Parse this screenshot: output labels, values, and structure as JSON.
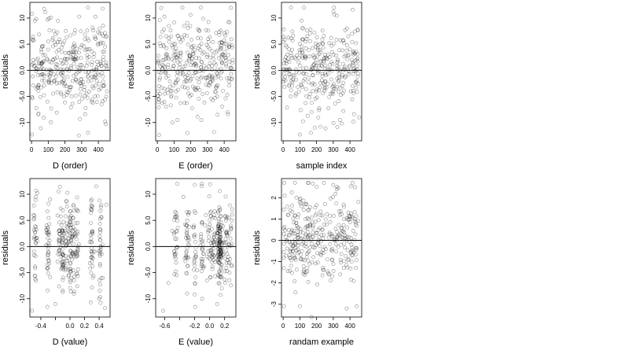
{
  "chart_data": [
    {
      "type": "scatter",
      "xlabel": "D (order)",
      "ylabel": "residuals",
      "xlim": [
        -10,
        470
      ],
      "ylim": [
        -13.5,
        13
      ],
      "xticks": [
        0,
        100,
        200,
        300,
        400
      ],
      "yticks": [
        -10,
        -5,
        0,
        5,
        10
      ],
      "hline": 0,
      "points": [
        [
          3,
          -12.3
        ],
        [
          20,
          9.5
        ],
        [
          55,
          -11.1
        ],
        [
          60,
          0.5
        ],
        [
          62,
          -0.8
        ],
        [
          92,
          2.2
        ],
        [
          95,
          -6
        ],
        [
          100,
          5.5
        ],
        [
          120,
          1.5
        ],
        [
          130,
          2
        ],
        [
          150,
          3.5
        ],
        [
          180,
          -1
        ],
        [
          200,
          2.2
        ],
        [
          240,
          -5
        ],
        [
          250,
          3
        ],
        [
          300,
          1
        ],
        [
          320,
          -8.4
        ],
        [
          330,
          4
        ],
        [
          360,
          -6
        ],
        [
          390,
          -2
        ],
        [
          400,
          1
        ],
        [
          420,
          7
        ],
        [
          425,
          11.8
        ],
        [
          430,
          -3
        ],
        [
          440,
          -9.8
        ],
        [
          445,
          -10.3
        ],
        [
          450,
          6.5
        ],
        [
          452,
          -4
        ]
      ],
      "generated": {
        "n": 320,
        "seed": 11,
        "xmin": 0,
        "xmax": 450,
        "mode": "uniform",
        "sd": 4.2,
        "mean": 0.5,
        "ymin": -12.5,
        "ymax": 12
      }
    },
    {
      "type": "scatter",
      "xlabel": "E (order)",
      "ylabel": "residuals",
      "xlim": [
        -10,
        470
      ],
      "ylim": [
        -13.5,
        13
      ],
      "xticks": [
        0,
        100,
        200,
        300,
        400
      ],
      "yticks": [
        -10,
        -5,
        0,
        5,
        10
      ],
      "hline": 0,
      "points": [
        [
          10,
          -12.4
        ],
        [
          15,
          9.6
        ],
        [
          20,
          -0.5
        ],
        [
          40,
          2
        ],
        [
          60,
          3
        ],
        [
          90,
          -10
        ],
        [
          120,
          -9.5
        ],
        [
          130,
          6
        ],
        [
          150,
          12
        ],
        [
          160,
          8.5
        ],
        [
          170,
          -2
        ],
        [
          180,
          -12
        ],
        [
          200,
          1
        ],
        [
          230,
          -0.3
        ],
        [
          250,
          2.3
        ],
        [
          260,
          6.1
        ],
        [
          290,
          -1.5
        ],
        [
          300,
          3
        ],
        [
          330,
          -2
        ],
        [
          360,
          -8.5
        ],
        [
          390,
          3
        ],
        [
          420,
          -8
        ],
        [
          430,
          -1.5
        ],
        [
          440,
          0.5
        ],
        [
          450,
          2
        ]
      ],
      "generated": {
        "n": 320,
        "seed": 23,
        "xmin": 0,
        "xmax": 450,
        "mode": "uniform",
        "sd": 4.2,
        "mean": 0.5,
        "ymin": -12.5,
        "ymax": 12
      }
    },
    {
      "type": "scatter",
      "xlabel": "sample index",
      "ylabel": "residuals",
      "xlim": [
        -10,
        470
      ],
      "ylim": [
        -13.5,
        13
      ],
      "xticks": [
        0,
        100,
        200,
        300,
        400
      ],
      "yticks": [
        -10,
        -5,
        0,
        5,
        10
      ],
      "hline": 0,
      "points": [
        [
          10,
          2
        ],
        [
          15,
          2.5
        ],
        [
          20,
          1.8
        ],
        [
          25,
          3
        ],
        [
          30,
          2.2
        ],
        [
          50,
          -2
        ],
        [
          60,
          -1
        ],
        [
          100,
          -12.3
        ],
        [
          110,
          9.5
        ],
        [
          120,
          8
        ],
        [
          125,
          12
        ],
        [
          140,
          6
        ],
        [
          170,
          -8
        ],
        [
          190,
          -11
        ],
        [
          200,
          2
        ],
        [
          250,
          3
        ],
        [
          280,
          1
        ],
        [
          300,
          -3
        ],
        [
          340,
          -9.5
        ],
        [
          350,
          -10.2
        ],
        [
          390,
          6.5
        ],
        [
          400,
          4
        ],
        [
          420,
          0.3
        ],
        [
          440,
          -2
        ],
        [
          455,
          -9
        ]
      ],
      "generated": {
        "n": 320,
        "seed": 37,
        "xmin": 0,
        "xmax": 450,
        "mode": "uniform",
        "sd": 4.2,
        "mean": 0.5,
        "ymin": -12.5,
        "ymax": 12
      }
    },
    {
      "type": "scatter",
      "xlabel": "D (value)",
      "ylabel": "residuals",
      "xlim": [
        -0.55,
        0.55
      ],
      "ylim": [
        -13.5,
        13
      ],
      "xticks": [
        -0.4,
        -0.2,
        0.0,
        0.2,
        0.4
      ],
      "xticklabels": [
        "-0.4",
        "",
        "0.0",
        "0.2",
        "0.4"
      ],
      "yticks": [
        -10,
        -5,
        0,
        5,
        10
      ],
      "hline": 0,
      "points": [
        [
          -0.52,
          -12.3
        ],
        [
          -0.5,
          6
        ],
        [
          -0.47,
          9.5
        ],
        [
          -0.45,
          1
        ],
        [
          -0.2,
          -11
        ],
        [
          -0.1,
          3
        ],
        [
          0,
          2.5
        ],
        [
          0.02,
          -6
        ],
        [
          0.1,
          -1
        ],
        [
          0.3,
          7
        ],
        [
          0.36,
          11.5
        ],
        [
          0.4,
          -10
        ],
        [
          0.42,
          -10.8
        ],
        [
          0.45,
          -6
        ],
        [
          0.48,
          -11.8
        ],
        [
          0.5,
          8
        ]
      ],
      "generated": {
        "n": 320,
        "seed": 53,
        "xmin": -0.52,
        "xmax": 0.52,
        "mode": "clusters",
        "centers": [
          -0.48,
          -0.3,
          -0.15,
          -0.1,
          -0.05,
          0.0,
          0.05,
          0.1,
          0.3,
          0.42
        ],
        "jitter": 0.012,
        "sd": 4.2,
        "mean": 0.5,
        "ymin": -12.5,
        "ymax": 12
      }
    },
    {
      "type": "scatter",
      "xlabel": "E (value)",
      "ylabel": "residuals",
      "xlim": [
        -0.72,
        0.35
      ],
      "ylim": [
        -13.5,
        13
      ],
      "xticks": [
        -0.6,
        -0.4,
        -0.2,
        0.0,
        0.2
      ],
      "xticklabels": [
        "-0.6",
        "",
        "-0.2",
        "0.0",
        "0.2"
      ],
      "yticks": [
        -10,
        -5,
        0,
        5,
        10
      ],
      "hline": 0,
      "points": [
        [
          -0.62,
          -12.3
        ],
        [
          -0.55,
          -7
        ],
        [
          -0.5,
          3
        ],
        [
          -0.35,
          9.5
        ],
        [
          -0.3,
          -9
        ],
        [
          -0.2,
          11.8
        ],
        [
          -0.1,
          -10
        ],
        [
          -0.05,
          6
        ],
        [
          0.1,
          -11
        ],
        [
          0.12,
          3
        ],
        [
          0.13,
          1
        ],
        [
          0.15,
          -4
        ],
        [
          0.25,
          -2
        ],
        [
          0.28,
          4
        ]
      ],
      "generated": {
        "n": 340,
        "seed": 71,
        "xmin": -0.6,
        "xmax": 0.3,
        "mode": "clusters",
        "centers": [
          -0.45,
          -0.3,
          -0.2,
          -0.1,
          0.0,
          0.05,
          0.12,
          0.13,
          0.14,
          0.15,
          0.22,
          0.27
        ],
        "jitter": 0.015,
        "sd": 4.0,
        "mean": 0.5,
        "ymin": -12.5,
        "ymax": 12
      }
    },
    {
      "type": "scatter",
      "xlabel": "randam example",
      "ylabel": "residuals",
      "xlim": [
        -10,
        470
      ],
      "ylim": [
        -3.6,
        2.9
      ],
      "xticks": [
        0,
        100,
        200,
        300,
        400
      ],
      "yticks": [
        -3,
        -2,
        -1,
        0,
        1,
        2
      ],
      "hline": 0,
      "points": [
        [
          5,
          -3.1
        ],
        [
          100,
          -3.1
        ],
        [
          170,
          -3.6
        ],
        [
          200,
          2.5
        ],
        [
          300,
          2.6
        ],
        [
          320,
          2.4
        ],
        [
          380,
          -3.2
        ],
        [
          440,
          -3.1
        ],
        [
          450,
          1.8
        ]
      ],
      "generated": {
        "n": 340,
        "seed": 97,
        "xmin": 0,
        "xmax": 450,
        "mode": "uniform",
        "sd": 1.0,
        "mean": 0.1,
        "ymin": -3.3,
        "ymax": 2.7
      }
    }
  ]
}
